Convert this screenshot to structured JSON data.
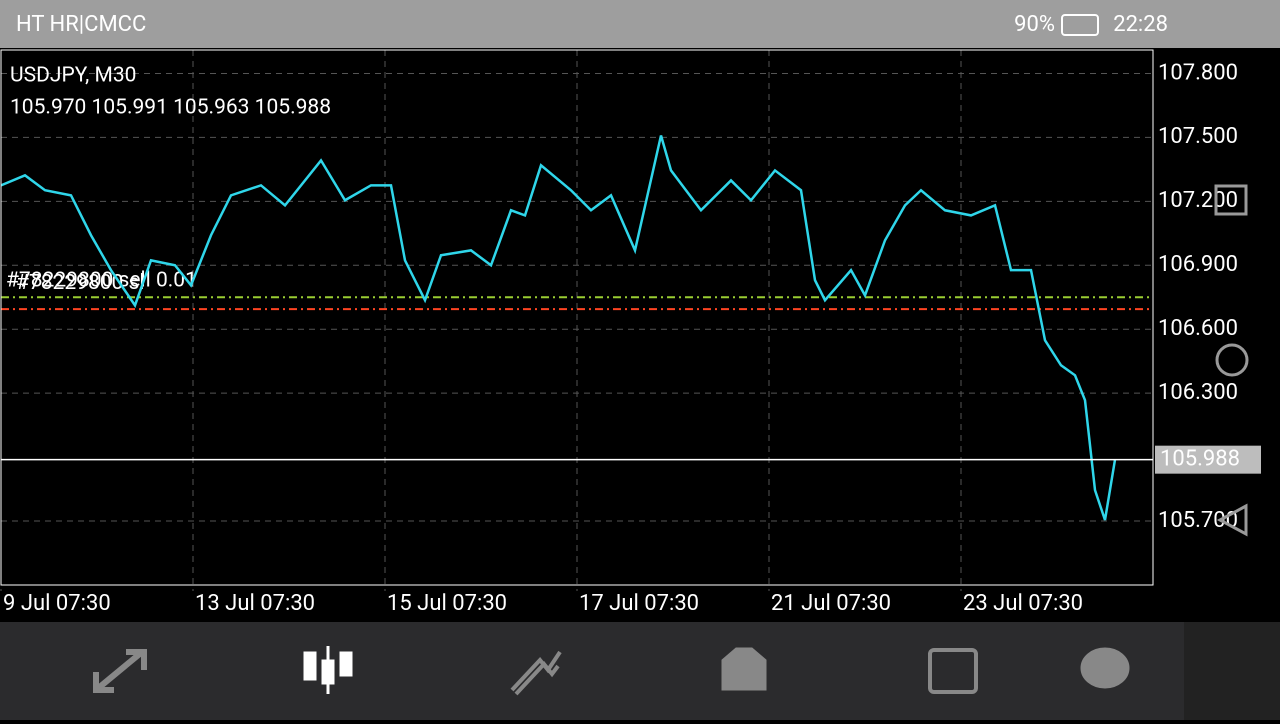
{
  "status_bar": {
    "carrier": "HT HR|CMCC",
    "battery": "90%",
    "time": "22:28"
  },
  "chart_data": {
    "type": "line",
    "title": "USDJPY, M30",
    "subtitle": "105.970 105.991 105.963 105.988",
    "x": [
      0,
      12,
      22,
      35,
      45,
      55,
      67,
      75,
      87,
      95,
      105,
      115,
      130,
      142,
      160,
      172,
      185,
      195,
      202,
      212,
      220,
      235,
      245,
      255,
      262,
      270,
      285,
      295,
      305,
      317,
      330,
      335,
      350,
      365,
      375,
      387,
      400,
      407,
      412,
      425,
      432,
      442,
      452,
      460,
      472,
      485,
      497,
      505,
      515,
      522,
      530,
      537,
      542,
      547,
      552,
      557
    ],
    "series": [
      {
        "name": "USDJPY",
        "color": "#2fd6ea",
        "values": [
          107.275,
          107.322,
          107.252,
          107.228,
          107.041,
          106.877,
          106.712,
          106.923,
          106.9,
          106.806,
          107.041,
          107.228,
          107.275,
          107.181,
          107.392,
          107.205,
          107.275,
          107.275,
          106.923,
          106.736,
          106.947,
          106.97,
          106.9,
          107.158,
          107.134,
          107.369,
          107.252,
          107.158,
          107.228,
          106.97,
          107.509,
          107.345,
          107.158,
          107.298,
          107.205,
          107.345,
          107.252,
          106.83,
          106.736,
          106.877,
          106.759,
          107.017,
          107.181,
          107.252,
          107.158,
          107.134,
          107.181,
          106.877,
          106.877,
          106.548,
          106.431,
          106.384,
          106.267,
          105.845,
          105.705,
          105.988
        ]
      }
    ],
    "xlim": [
      0,
      576
    ],
    "xticks": [
      {
        "value": 0,
        "label": "9 Jul 07:30"
      },
      {
        "value": 96,
        "label": "13 Jul 07:30"
      },
      {
        "value": 192,
        "label": "15 Jul 07:30"
      },
      {
        "value": 288,
        "label": "17 Jul 07:30"
      },
      {
        "value": 384,
        "label": "21 Jul 07:30"
      },
      {
        "value": 480,
        "label": "23 Jul 07:30"
      }
    ],
    "ylim": [
      105.4,
      107.91
    ],
    "yticks": [
      {
        "value": 107.8,
        "label": "107.800"
      },
      {
        "value": 107.5,
        "label": "107.500"
      },
      {
        "value": 107.2,
        "label": "107.200"
      },
      {
        "value": 106.9,
        "label": "106.900"
      },
      {
        "value": 106.6,
        "label": "106.600"
      },
      {
        "value": 106.3,
        "label": "106.300"
      },
      {
        "value": 105.7,
        "label": "105.700"
      }
    ],
    "grid": true,
    "price_line": {
      "value": 105.988,
      "label": "105.988",
      "color": "#ffffff"
    },
    "order_lines": [
      {
        "value": 106.75,
        "label": "#78229800 sl",
        "color": "#9acd32"
      },
      {
        "value": 106.694,
        "label": "#78229800 sell 0.01",
        "color": "#ff4422"
      }
    ]
  }
}
